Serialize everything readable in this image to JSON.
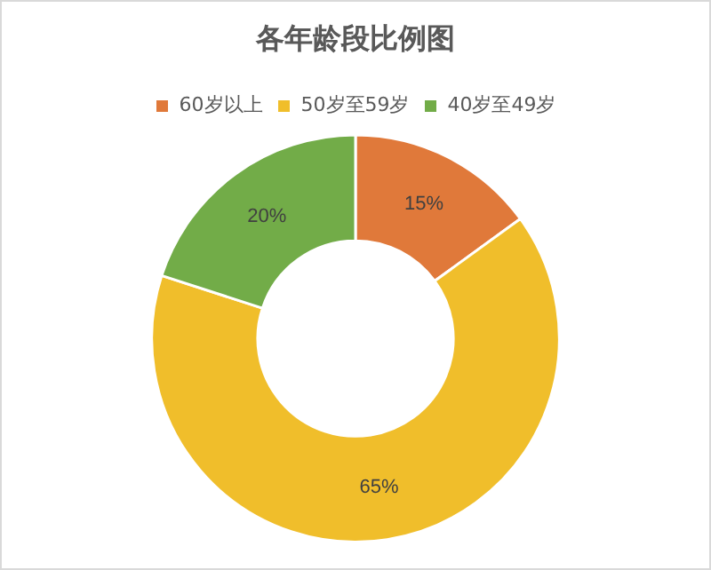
{
  "chart_data": {
    "type": "donut",
    "title": "各年龄段比例图",
    "categories": [
      "60岁以上",
      "50岁至59岁",
      "40岁至49岁"
    ],
    "values": [
      15,
      65,
      20
    ],
    "colors": [
      "#e0793a",
      "#f0be2b",
      "#72ac48"
    ],
    "value_labels": [
      "15%",
      "65%",
      "20%"
    ],
    "legend": "top"
  }
}
